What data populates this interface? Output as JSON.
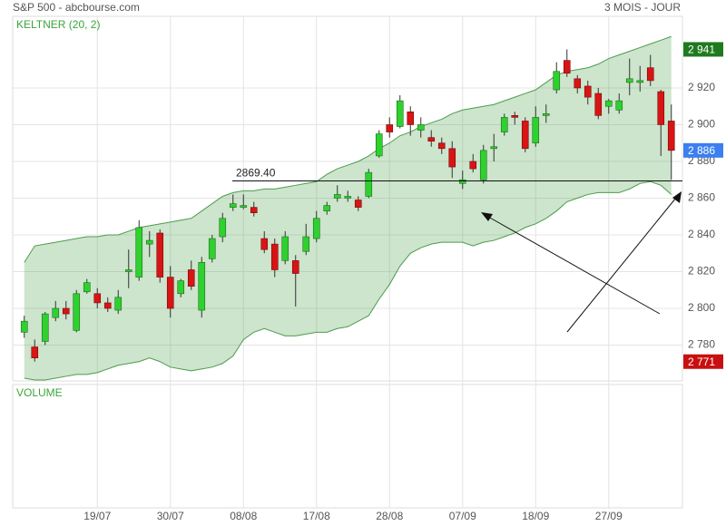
{
  "chart_data": {
    "type": "candlestick",
    "source": "S&P 500 - abcbourse.com",
    "period": "3 MOIS - JOUR",
    "indicator_label": "KELTNER (20, 2)",
    "volume_label": "VOLUME",
    "categories": [
      null,
      null,
      null,
      null,
      null,
      null,
      null,
      "19/07",
      null,
      null,
      null,
      null,
      null,
      null,
      "30/07",
      null,
      null,
      null,
      null,
      null,
      null,
      "08/08",
      null,
      null,
      null,
      null,
      null,
      null,
      "17/08",
      null,
      null,
      null,
      null,
      null,
      null,
      "28/08",
      null,
      null,
      null,
      null,
      null,
      null,
      "07/09",
      null,
      null,
      null,
      null,
      null,
      null,
      "18/09",
      null,
      null,
      null,
      null,
      null,
      null,
      "27/09",
      null,
      null,
      null,
      null,
      null,
      null
    ],
    "open": [
      2787,
      2779,
      2782,
      2795,
      2800,
      2788,
      2809,
      2808,
      2803,
      2799,
      2820,
      2817,
      2835,
      2841,
      2817,
      2808,
      2821,
      2799,
      2827,
      2839,
      2855,
      2855,
      2855,
      2838,
      2835,
      2826,
      2826,
      2831,
      2838,
      2853,
      2860,
      2860,
      2859,
      2861,
      2883,
      2900,
      2899,
      2907,
      2897,
      2893,
      2890,
      2887,
      2868,
      2880,
      2870,
      2887,
      2896,
      2905,
      2902,
      2890,
      2905,
      2919,
      2935,
      2925,
      2921,
      2917,
      2910,
      2908,
      2923,
      2923,
      2931,
      2918,
      2902
    ],
    "high": [
      2796,
      2783,
      2798,
      2804,
      2804,
      2810,
      2816,
      2811,
      2806,
      2810,
      2832,
      2848,
      2842,
      2843,
      2823,
      2816,
      2826,
      2828,
      2840,
      2852,
      2862,
      2862,
      2858,
      2842,
      2838,
      2842,
      2829,
      2846,
      2853,
      2858,
      2867,
      2864,
      2861,
      2876,
      2897,
      2904,
      2916,
      2910,
      2904,
      2897,
      2893,
      2891,
      2875,
      2884,
      2889,
      2895,
      2906,
      2907,
      2904,
      2910,
      2911,
      2934,
      2941,
      2927,
      2924,
      2920,
      2914,
      2917,
      2936,
      2932,
      2938,
      2919,
      2911
    ],
    "low": [
      2784,
      2771,
      2780,
      2793,
      2794,
      2787,
      2808,
      2800,
      2798,
      2797,
      2811,
      2815,
      2828,
      2814,
      2795,
      2806,
      2810,
      2795,
      2825,
      2836,
      2853,
      2854,
      2850,
      2830,
      2817,
      2824,
      2801,
      2829,
      2836,
      2851,
      2858,
      2858,
      2853,
      2860,
      2882,
      2893,
      2898,
      2894,
      2893,
      2888,
      2884,
      2871,
      2865,
      2874,
      2868,
      2880,
      2894,
      2900,
      2885,
      2888,
      2901,
      2917,
      2926,
      2917,
      2911,
      2903,
      2906,
      2906,
      2916,
      2918,
      2921,
      2883,
      2870
    ],
    "close": [
      2793,
      2773,
      2797,
      2800,
      2797,
      2808,
      2814,
      2803,
      2800,
      2806,
      2821,
      2844,
      2837,
      2817,
      2800,
      2815,
      2812,
      2825,
      2838,
      2849,
      2857,
      2856,
      2852,
      2832,
      2821,
      2839,
      2819,
      2839,
      2849,
      2856,
      2862,
      2861,
      2855,
      2874,
      2895,
      2896,
      2913,
      2900,
      2900,
      2891,
      2887,
      2877,
      2870,
      2876,
      2886,
      2888,
      2904,
      2904,
      2887,
      2904,
      2906,
      2929,
      2928,
      2920,
      2915,
      2905,
      2913,
      2913,
      2925,
      2924,
      2924,
      2900,
      2886
    ],
    "up_color": "#2fd12f",
    "down_color": "#d81414",
    "keltner": {
      "upper": [
        2825,
        2834,
        2835,
        2836,
        2837,
        2838,
        2839,
        2839,
        2840,
        2840,
        2842,
        2844,
        2845,
        2846,
        2847,
        2848,
        2849,
        2853,
        2857,
        2861,
        2863,
        2864,
        2864,
        2865,
        2865,
        2866,
        2867,
        2868,
        2869,
        2873,
        2876,
        2878,
        2880,
        2883,
        2887,
        2890,
        2894,
        2896,
        2899,
        2901,
        2903,
        2906,
        2908,
        2909,
        2910,
        2911,
        2913,
        2915,
        2917,
        2919,
        2923,
        2927,
        2929,
        2930,
        2931,
        2933,
        2936,
        2938,
        2940,
        2942,
        2944,
        2946,
        2948
      ],
      "lower": [
        2762,
        2761,
        2761,
        2762,
        2763,
        2764,
        2764,
        2765,
        2767,
        2769,
        2770,
        2771,
        2773,
        2771,
        2768,
        2767,
        2766,
        2767,
        2768,
        2770,
        2774,
        2783,
        2787,
        2789,
        2787,
        2785,
        2785,
        2786,
        2787,
        2787,
        2789,
        2790,
        2793,
        2796,
        2805,
        2813,
        2823,
        2830,
        2833,
        2835,
        2836,
        2836,
        2836,
        2834,
        2836,
        2837,
        2839,
        2841,
        2844,
        2846,
        2849,
        2853,
        2858,
        2860,
        2862,
        2863,
        2863,
        2863,
        2865,
        2868,
        2869,
        2867,
        2862
      ],
      "color": "#4a9d4a"
    },
    "ylim": [
      2760.5,
      2959
    ],
    "yticks": [
      {
        "value": 2780,
        "label": "2 780"
      },
      {
        "value": 2800,
        "label": "2 800"
      },
      {
        "value": 2820,
        "label": "2 820"
      },
      {
        "value": 2840,
        "label": "2 840"
      },
      {
        "value": 2860,
        "label": "2 860"
      },
      {
        "value": 2880,
        "label": "2 880"
      },
      {
        "value": 2900,
        "label": "2 900"
      },
      {
        "value": 2920,
        "label": "2 920"
      }
    ],
    "price_tags": {
      "values": [
        2941,
        2886,
        2771
      ],
      "value_labels": [
        "2 941",
        "2 886",
        "2 771"
      ],
      "colors": [
        "#1f7a1f",
        "#3b7ff0",
        "#c81010"
      ]
    },
    "annotation": {
      "value": 2869.4,
      "label": "2869.40"
    },
    "grid": true
  }
}
